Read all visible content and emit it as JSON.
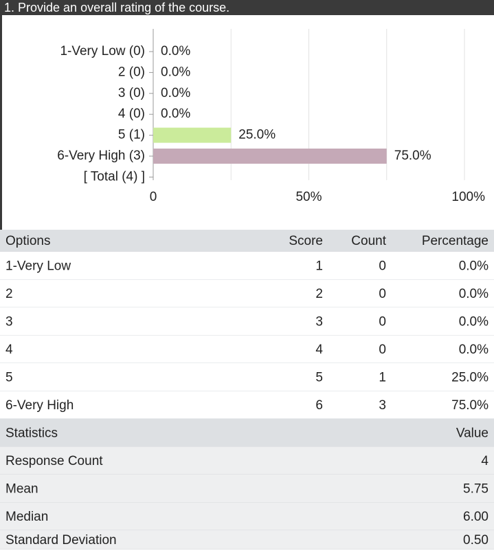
{
  "chart_data": {
    "type": "bar",
    "orientation": "horizontal",
    "title": "1. Provide an overall rating of the course.",
    "categories": [
      "1-Very Low (0)",
      "2 (0)",
      "3 (0)",
      "4 (0)",
      "5 (1)",
      "6-Very High (3)"
    ],
    "values": [
      0,
      0,
      0,
      0,
      25,
      75
    ],
    "value_labels": [
      "0.0%",
      "0.0%",
      "0.0%",
      "0.0%",
      "25.0%",
      "75.0%"
    ],
    "colors": [
      "#cbeb9b",
      "#cbeb9b",
      "#cbeb9b",
      "#cbeb9b",
      "#cbeb9b",
      "#c5a9b7"
    ],
    "total_label": "[ Total (4) ]",
    "xlim": [
      0,
      100
    ],
    "xticks": [
      0,
      {
        "value": 50,
        "label": "50%"
      },
      {
        "value": 100,
        "label": "100%"
      }
    ],
    "minor_grid": [
      25,
      75
    ],
    "grid": true
  },
  "table": {
    "columns": [
      "Options",
      "Score",
      "Count",
      "Percentage"
    ],
    "rows": [
      [
        "1-Very Low",
        "1",
        "0",
        "0.0%"
      ],
      [
        "2",
        "2",
        "0",
        "0.0%"
      ],
      [
        "3",
        "3",
        "0",
        "0.0%"
      ],
      [
        "4",
        "4",
        "0",
        "0.0%"
      ],
      [
        "5",
        "5",
        "1",
        "25.0%"
      ],
      [
        "6-Very High",
        "6",
        "3",
        "75.0%"
      ]
    ]
  },
  "statistics": {
    "columns": [
      "Statistics",
      "Value"
    ],
    "rows": [
      [
        "Response Count",
        "4"
      ],
      [
        "Mean",
        "5.75"
      ],
      [
        "Median",
        "6.00"
      ],
      [
        "Standard Deviation",
        "0.50"
      ]
    ]
  }
}
